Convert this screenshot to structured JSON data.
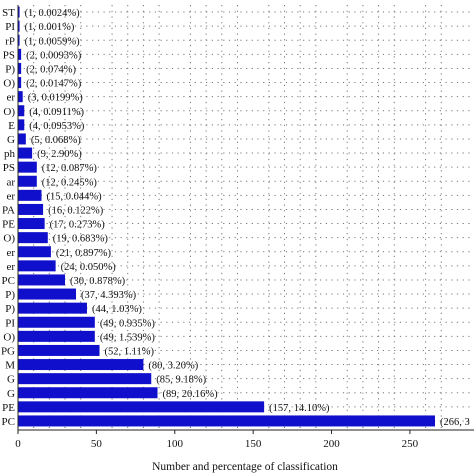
{
  "chart_data": {
    "type": "bar",
    "orientation": "horizontal",
    "bar_color": "#1010cc",
    "grid": "dotted",
    "xlabel": "Number and percentage of classification",
    "xlim": [
      0,
      266
    ],
    "xticks": [
      0,
      50,
      100,
      150,
      200,
      250
    ],
    "categories": [
      "ST",
      "PI",
      "rP",
      "PS",
      "P)",
      "O)",
      "er",
      "O)",
      "E",
      "G",
      "ph",
      "PS",
      "ar",
      "er",
      "PA",
      "PE",
      "O)",
      "er",
      "er",
      "PC",
      "P)",
      "P)",
      "PI",
      "O)",
      "PG",
      "M",
      "G",
      "G",
      "PE",
      "PC"
    ],
    "values": [
      1,
      1,
      1,
      2,
      2,
      2,
      3,
      4,
      4,
      5,
      9,
      12,
      12,
      15,
      16,
      17,
      19,
      21,
      24,
      30,
      37,
      44,
      49,
      49,
      52,
      80,
      85,
      89,
      157,
      266
    ],
    "value_labels": [
      "(1, 0.0024%)",
      "(1, 0.001%)",
      "(1, 0.0059%)",
      "(2, 0.0093%)",
      "(2, 0.074%)",
      "(2, 0.0147%)",
      "(3, 0.0199%)",
      "(4, 0.0911%)",
      "(4, 0.0953%)",
      "(5, 0.068%)",
      "(9, 2.90%)",
      "(12, 0.087%)",
      "(12, 0.245%)",
      "(15, 0.044%)",
      "(16, 0.122%)",
      "(17, 0.273%)",
      "(19, 0.683%)",
      "(21, 0.897%)",
      "(24, 0.050%)",
      "(30, 0.878%)",
      "(37, 4.393%)",
      "(44, 1.03%)",
      "(49, 0.935%)",
      "(49, 1.539%)",
      "(52, 1.11%)",
      "(80, 3.20%)",
      "(85, 9.18%)",
      "(89, 20.16%)",
      "(157, 14.10%)",
      "(266, 3"
    ]
  }
}
